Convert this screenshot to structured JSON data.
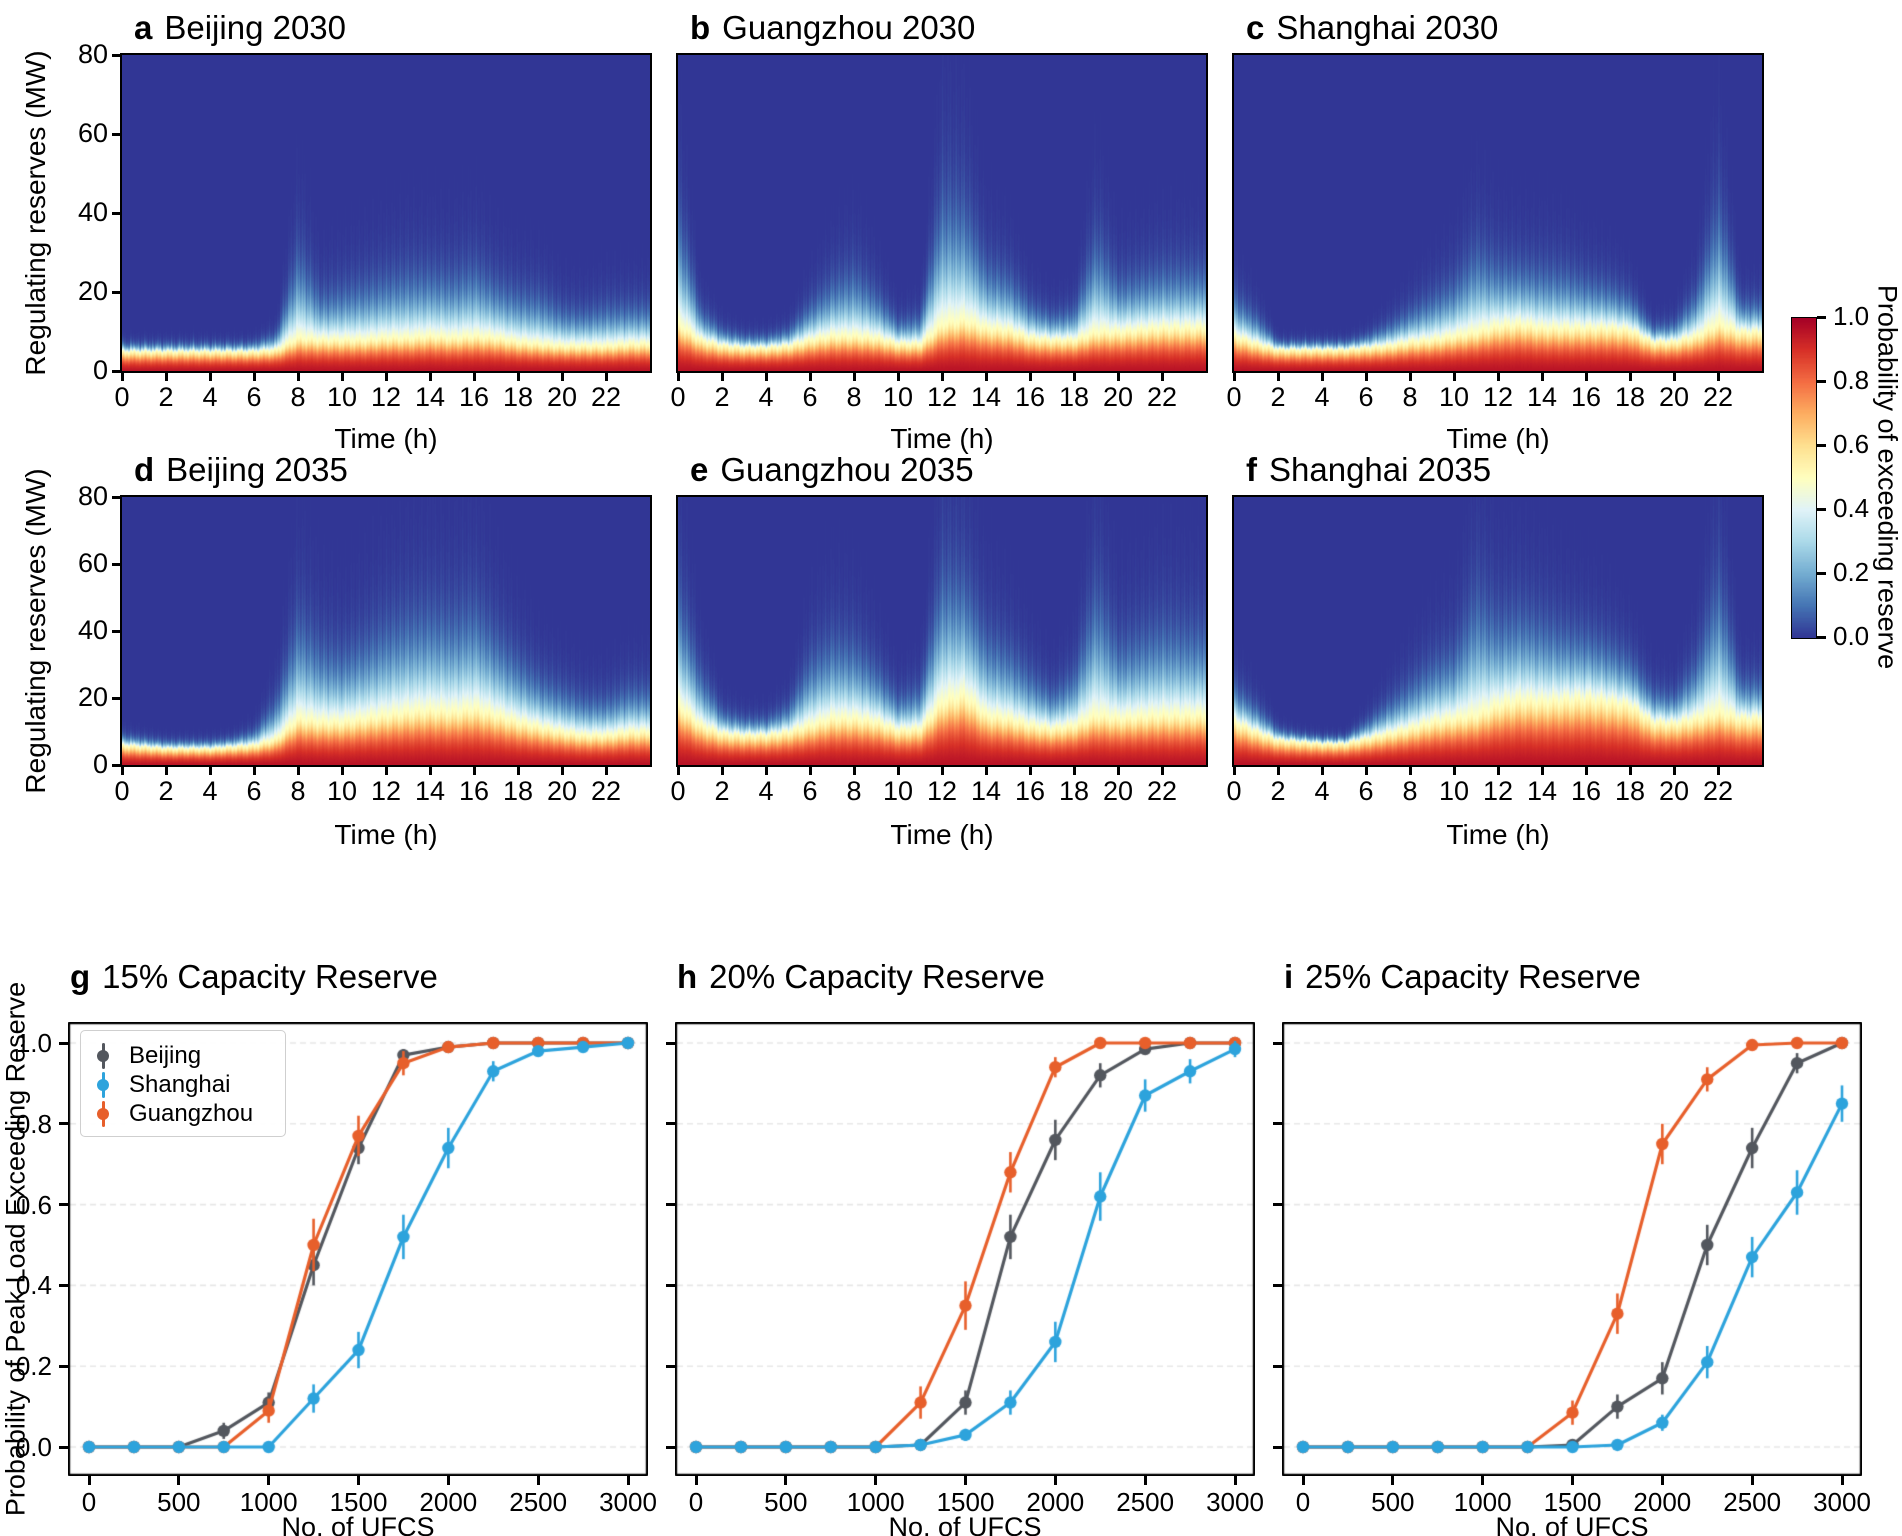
{
  "figure_title": "",
  "chart_data": {
    "heatmaps": {
      "type": "heatmap",
      "xlabel": "Time (h)",
      "ylabel": "Regulating reserves (MW)",
      "x_range": [
        0,
        24
      ],
      "y_range": [
        0,
        80
      ],
      "xticks": [
        0,
        2,
        4,
        6,
        8,
        10,
        12,
        14,
        16,
        18,
        20,
        22
      ],
      "yticks": [
        80,
        60,
        40,
        20,
        0
      ],
      "colorbar": {
        "label": "Probability of exceeding reserve",
        "ticks": [
          "1.0",
          "0.8",
          "0.6",
          "0.4",
          "0.2",
          "0.0"
        ]
      },
      "colormap_rdylbu_r": [
        "#313695",
        "#4575b4",
        "#74add1",
        "#abd9e9",
        "#e0f3f8",
        "#ffffbf",
        "#fee090",
        "#fdae61",
        "#f46d43",
        "#d73027",
        "#a50026"
      ],
      "panels": [
        {
          "letter": "a",
          "title": "Beijing 2030",
          "hours": [
            0,
            1,
            2,
            3,
            4,
            5,
            6,
            7,
            8,
            9,
            10,
            11,
            12,
            13,
            14,
            15,
            16,
            17,
            18,
            19,
            20,
            21,
            22,
            23
          ],
          "white_level_mw": [
            5,
            5,
            5,
            5,
            5,
            5,
            5,
            5.5,
            8.5,
            8,
            8,
            8,
            8.5,
            8.5,
            9,
            8.5,
            9,
            8.5,
            7.5,
            7,
            6.5,
            6.5,
            6.5,
            7
          ],
          "plume_top_mw": [
            8,
            8,
            8,
            8,
            8,
            8,
            9,
            12,
            42,
            26,
            28,
            30,
            32,
            34,
            34,
            33,
            36,
            30,
            27,
            26,
            21,
            20,
            22,
            22
          ]
        },
        {
          "letter": "b",
          "title": "Guangzhou 2030",
          "hours": [
            0,
            1,
            2,
            3,
            4,
            5,
            6,
            7,
            8,
            9,
            10,
            11,
            12,
            13,
            14,
            15,
            16,
            17,
            18,
            19,
            20,
            21,
            22,
            23
          ],
          "white_level_mw": [
            12,
            8,
            6.5,
            6,
            6,
            6.5,
            8,
            9,
            9,
            8.5,
            7,
            7,
            12,
            13,
            11,
            10.5,
            8.5,
            8,
            8,
            10,
            10,
            10.5,
            11,
            11
          ],
          "plume_top_mw": [
            55,
            20,
            13,
            11,
            11,
            13,
            22,
            30,
            34,
            26,
            16,
            18,
            62,
            58,
            36,
            32,
            22,
            18,
            20,
            46,
            30,
            32,
            34,
            34
          ]
        },
        {
          "letter": "c",
          "title": "Shanghai 2030",
          "hours": [
            0,
            1,
            2,
            3,
            4,
            5,
            6,
            7,
            8,
            9,
            10,
            11,
            12,
            13,
            14,
            15,
            16,
            17,
            18,
            19,
            20,
            21,
            22,
            23
          ],
          "white_level_mw": [
            9,
            7,
            5.5,
            5.5,
            5.5,
            5.5,
            6,
            6.5,
            7.5,
            8,
            9,
            10,
            11.5,
            12,
            11,
            11,
            11,
            11,
            10.5,
            7.5,
            7.5,
            9,
            12,
            10
          ],
          "plume_top_mw": [
            25,
            18,
            9,
            9,
            9,
            9,
            11,
            15,
            20,
            25,
            30,
            42,
            36,
            35,
            34,
            33,
            30,
            28,
            24,
            14,
            15,
            26,
            58,
            22
          ]
        },
        {
          "letter": "d",
          "title": "Beijing 2035",
          "hours": [
            0,
            1,
            2,
            3,
            4,
            5,
            6,
            7,
            8,
            9,
            10,
            11,
            12,
            13,
            14,
            15,
            16,
            17,
            18,
            19,
            20,
            21,
            22,
            23
          ],
          "white_level_mw": [
            6,
            5.5,
            5,
            5,
            5,
            5.5,
            6,
            8,
            14,
            13,
            13,
            14,
            15,
            16,
            16.5,
            16,
            17,
            15,
            13,
            11.5,
            10,
            9,
            9,
            10
          ],
          "plume_top_mw": [
            11,
            10,
            9,
            9,
            9,
            10,
            13,
            26,
            60,
            48,
            45,
            50,
            56,
            60,
            62,
            60,
            64,
            52,
            42,
            34,
            30,
            26,
            26,
            30
          ]
        },
        {
          "letter": "e",
          "title": "Guangzhou 2035",
          "hours": [
            0,
            1,
            2,
            3,
            4,
            5,
            6,
            7,
            8,
            9,
            10,
            11,
            12,
            13,
            14,
            15,
            16,
            17,
            18,
            19,
            20,
            21,
            22,
            23
          ],
          "white_level_mw": [
            18,
            12,
            9.5,
            9,
            9,
            10,
            12,
            14,
            14,
            13,
            10.5,
            11,
            19,
            21,
            15,
            14,
            12,
            11,
            12,
            15,
            14,
            14.5,
            15,
            15
          ],
          "plume_top_mw": [
            70,
            36,
            20,
            17,
            17,
            22,
            42,
            50,
            48,
            38,
            26,
            30,
            78,
            74,
            52,
            46,
            36,
            28,
            36,
            72,
            48,
            52,
            56,
            54
          ]
        },
        {
          "letter": "f",
          "title": "Shanghai 2035",
          "hours": [
            0,
            1,
            2,
            3,
            4,
            5,
            6,
            7,
            8,
            9,
            10,
            11,
            12,
            13,
            14,
            15,
            16,
            17,
            18,
            19,
            20,
            21,
            22,
            23
          ],
          "white_level_mw": [
            13,
            10,
            7.5,
            7,
            6.5,
            6.5,
            8,
            9.5,
            11,
            13,
            14,
            15,
            18,
            19.5,
            19,
            19.5,
            20,
            19,
            18,
            13,
            12.5,
            14,
            16,
            14
          ],
          "plume_top_mw": [
            30,
            22,
            13,
            11,
            10,
            10,
            16,
            24,
            32,
            40,
            45,
            70,
            58,
            60,
            56,
            52,
            50,
            46,
            40,
            28,
            26,
            40,
            76,
            32
          ]
        }
      ]
    },
    "capacity_curves": {
      "type": "line",
      "xlabel": "No. of UFCS",
      "ylabel": "Probability of Peak Load Exceeding Reserve",
      "x": [
        0,
        250,
        500,
        750,
        1000,
        1250,
        1500,
        1750,
        2000,
        2250,
        2500,
        2750,
        3000
      ],
      "xticks": [
        0,
        500,
        1000,
        1500,
        2000,
        2500,
        3000
      ],
      "yticks": [
        "1.0",
        "0.8",
        "0.6",
        "0.4",
        "0.2",
        "0.0"
      ],
      "ylim": [
        0,
        1
      ],
      "grid": "horizontal-dashed",
      "legend_position": "top-left-panel-g",
      "legend": [
        {
          "label": "Beijing",
          "color": "#53575e"
        },
        {
          "label": "Shanghai",
          "color": "#2da3dc"
        },
        {
          "label": "Guangzhou",
          "color": "#e75f2b"
        }
      ],
      "panels": [
        {
          "letter": "g",
          "title": "15% Capacity Reserve",
          "series": [
            {
              "city": "Beijing",
              "values": [
                0,
                0,
                0,
                0.04,
                0.11,
                0.45,
                0.74,
                0.97,
                0.99,
                1.0,
                1.0,
                1.0,
                1.0
              ],
              "errors": [
                0.01,
                0.01,
                0.01,
                0.02,
                0.025,
                0.05,
                0.04,
                0.015,
                0.008,
                0.005,
                0.005,
                0.005,
                0.005
              ]
            },
            {
              "city": "Guangzhou",
              "values": [
                0,
                0,
                0,
                0,
                0.09,
                0.5,
                0.77,
                0.95,
                0.99,
                1.0,
                1.0,
                1.0,
                1.0
              ],
              "errors": [
                0.01,
                0.01,
                0.01,
                0.01,
                0.03,
                0.065,
                0.05,
                0.03,
                0.012,
                0.006,
                0.005,
                0.005,
                0.005
              ]
            },
            {
              "city": "Shanghai",
              "values": [
                0,
                0,
                0,
                0,
                0,
                0.12,
                0.24,
                0.52,
                0.74,
                0.93,
                0.98,
                0.99,
                1.0
              ],
              "errors": [
                0.01,
                0.01,
                0.01,
                0.01,
                0.01,
                0.035,
                0.045,
                0.055,
                0.05,
                0.025,
                0.012,
                0.01,
                0.006
              ]
            }
          ]
        },
        {
          "letter": "h",
          "title": "20% Capacity Reserve",
          "series": [
            {
              "city": "Beijing",
              "values": [
                0,
                0,
                0,
                0,
                0,
                0.005,
                0.11,
                0.52,
                0.76,
                0.92,
                0.985,
                1.0,
                1.0
              ],
              "errors": [
                0.005,
                0.005,
                0.005,
                0.005,
                0.005,
                0.008,
                0.03,
                0.055,
                0.05,
                0.03,
                0.012,
                0.006,
                0.005
              ]
            },
            {
              "city": "Guangzhou",
              "values": [
                0,
                0,
                0,
                0,
                0,
                0.11,
                0.35,
                0.68,
                0.94,
                1.0,
                1.0,
                1.0,
                1.0
              ],
              "errors": [
                0.005,
                0.005,
                0.005,
                0.005,
                0.005,
                0.04,
                0.06,
                0.05,
                0.025,
                0.005,
                0.005,
                0.005,
                0.005
              ]
            },
            {
              "city": "Shanghai",
              "values": [
                0,
                0,
                0,
                0,
                0,
                0.005,
                0.03,
                0.11,
                0.26,
                0.62,
                0.87,
                0.93,
                0.985
              ],
              "errors": [
                0.005,
                0.005,
                0.005,
                0.005,
                0.005,
                0.008,
                0.015,
                0.03,
                0.05,
                0.06,
                0.04,
                0.03,
                0.02
              ]
            }
          ]
        },
        {
          "letter": "i",
          "title": "25% Capacity Reserve",
          "series": [
            {
              "city": "Beijing",
              "values": [
                0,
                0,
                0,
                0,
                0,
                0,
                0.005,
                0.1,
                0.17,
                0.5,
                0.74,
                0.95,
                1.0
              ],
              "errors": [
                0.005,
                0.005,
                0.005,
                0.005,
                0.005,
                0.005,
                0.008,
                0.03,
                0.04,
                0.05,
                0.05,
                0.025,
                0.008
              ]
            },
            {
              "city": "Guangzhou",
              "values": [
                0,
                0,
                0,
                0,
                0,
                0,
                0.085,
                0.33,
                0.75,
                0.91,
                0.995,
                1.0,
                1.0
              ],
              "errors": [
                0.005,
                0.005,
                0.005,
                0.005,
                0.005,
                0.005,
                0.03,
                0.05,
                0.05,
                0.03,
                0.008,
                0.005,
                0.005
              ]
            },
            {
              "city": "Shanghai",
              "values": [
                0,
                0,
                0,
                0,
                0,
                0,
                0,
                0.005,
                0.06,
                0.21,
                0.47,
                0.63,
                0.85
              ],
              "errors": [
                0.005,
                0.005,
                0.005,
                0.005,
                0.005,
                0.005,
                0.005,
                0.008,
                0.02,
                0.04,
                0.05,
                0.055,
                0.045
              ]
            }
          ]
        }
      ]
    }
  }
}
